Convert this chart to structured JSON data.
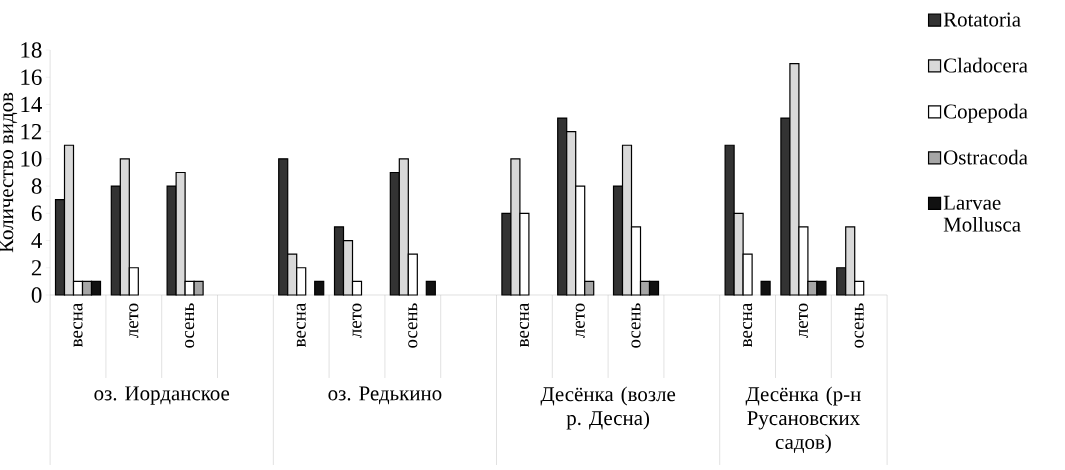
{
  "chart_data": {
    "type": "bar",
    "ylabel": "Количество видов",
    "categories": [
      "весна",
      "лето",
      "осень",
      null,
      "весна",
      "лето",
      "осень",
      null,
      "весна",
      "лето",
      "осень",
      null,
      "весна",
      "лето",
      "осень"
    ],
    "series": [
      {
        "name": "Rotatoria",
        "color": "#333333",
        "values": [
          7,
          8,
          8,
          null,
          10,
          5,
          9,
          null,
          6,
          13,
          8,
          null,
          11,
          13,
          2
        ]
      },
      {
        "name": "Cladocera",
        "color": "#d9d9d9",
        "values": [
          11,
          10,
          9,
          null,
          3,
          4,
          10,
          null,
          10,
          12,
          11,
          null,
          6,
          17,
          5
        ]
      },
      {
        "name": "Copepoda",
        "color": "#ffffff",
        "values": [
          1,
          2,
          1,
          null,
          2,
          1,
          3,
          null,
          6,
          8,
          5,
          null,
          3,
          5,
          1
        ]
      },
      {
        "name": "Ostracoda",
        "color": "#a6a6a6",
        "values": [
          1,
          0,
          1,
          null,
          0,
          0,
          0,
          null,
          0,
          1,
          1,
          null,
          0,
          1,
          0
        ]
      },
      {
        "name": "Larvae Mollusca",
        "color": "#111111",
        "values": [
          1,
          0,
          0,
          null,
          1,
          0,
          1,
          null,
          0,
          0,
          1,
          null,
          1,
          1,
          0
        ]
      }
    ],
    "annotations": [
      "оз. Иорданское",
      "оз. Редькино",
      "Десёнка (возле р. Десна)",
      "Десёнка (р-н Русановских садов)"
    ],
    "ylim": [
      0,
      18
    ],
    "yticks": [
      0,
      2,
      4,
      6,
      8,
      10,
      12,
      14,
      16,
      18
    ],
    "grid": false,
    "legend": "right"
  }
}
